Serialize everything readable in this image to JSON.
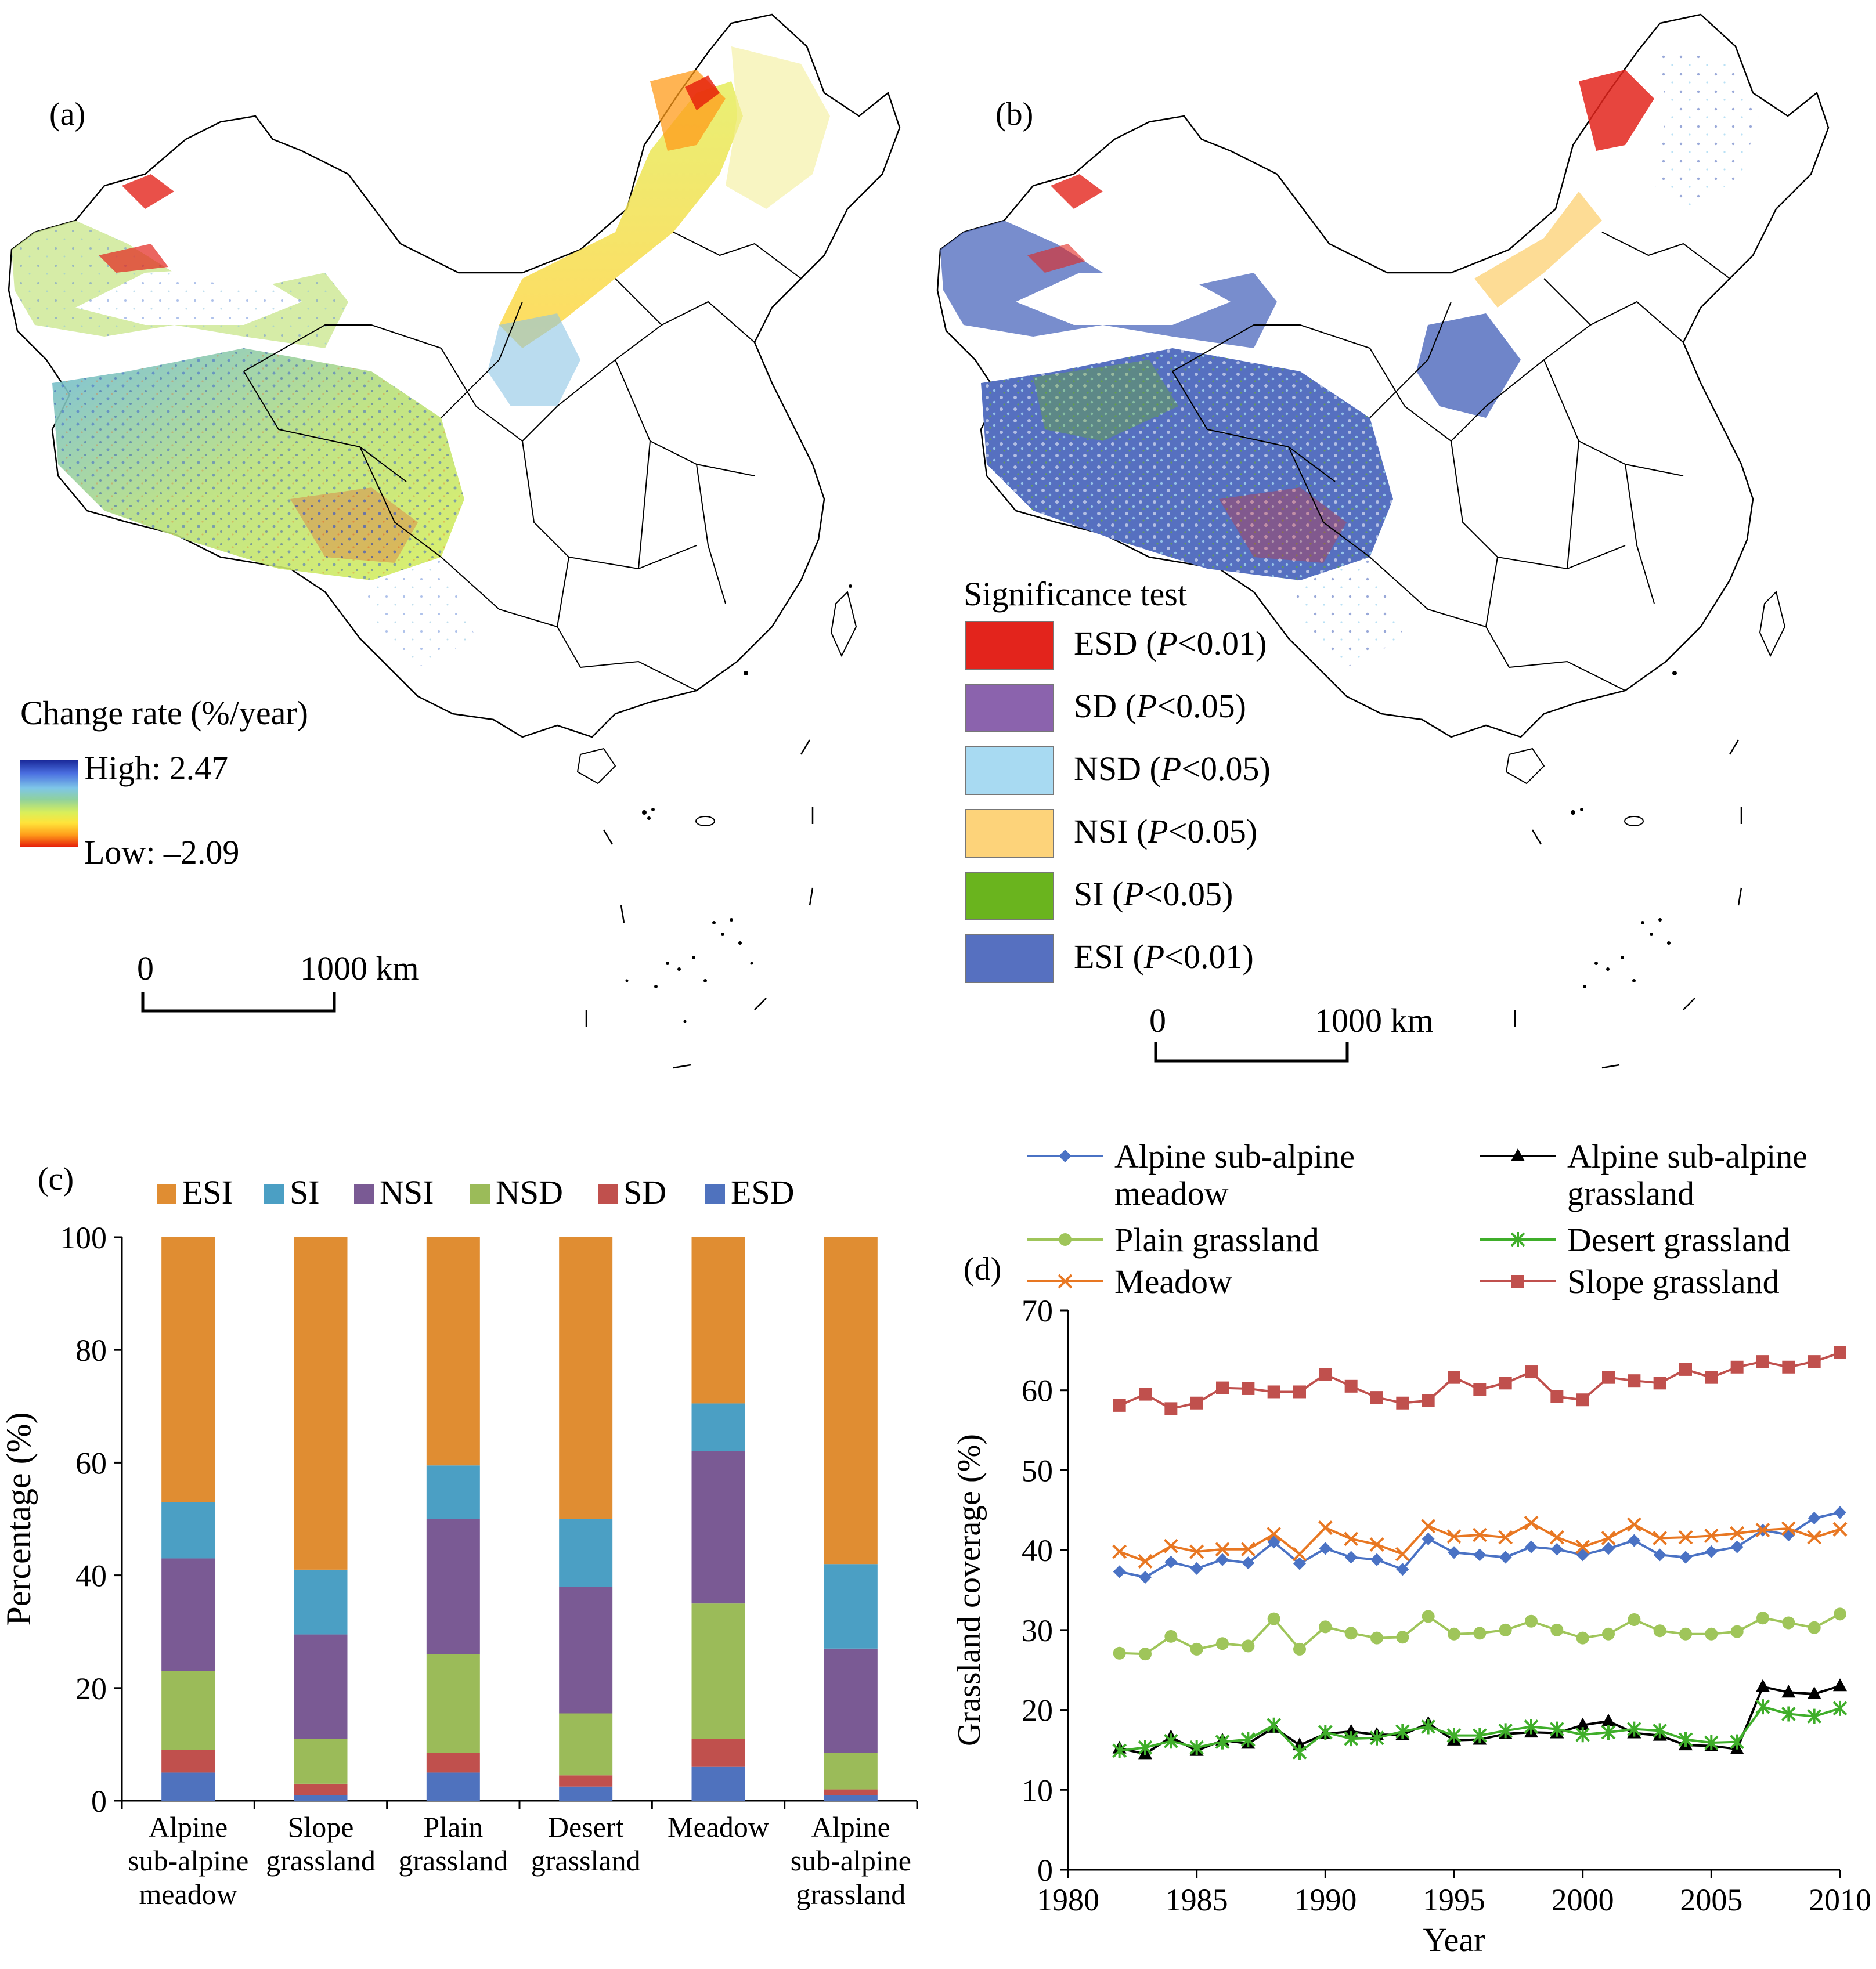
{
  "panels": {
    "a": "(a)",
    "b": "(b)",
    "c": "(c)",
    "d": "(d)"
  },
  "map_a": {
    "legend_title": "Change rate (%/year)",
    "high_label": "High: 2.47",
    "low_label": "Low: –2.09",
    "scale_zero": "0",
    "scale_label": "1000 km",
    "gradient_colors": [
      "#1a2a9a",
      "#4a6ee0",
      "#7ec6e8",
      "#8fd19e",
      "#d9ef5b",
      "#ffe43a",
      "#ff9b1a",
      "#e51a0a"
    ]
  },
  "map_b": {
    "legend_title": "Significance test",
    "classes": [
      {
        "code": "ESD",
        "p": "P",
        "rest": "<0.01)",
        "color": "#e3241c"
      },
      {
        "code": "SD",
        "p": "P",
        "rest": "<0.05)",
        "color": "#8b63ad"
      },
      {
        "code": "NSD",
        "p": "P",
        "rest": "<0.05)",
        "color": "#a8daf2"
      },
      {
        "code": "NSI",
        "p": "P",
        "rest": "<0.05)",
        "color": "#fdd37a"
      },
      {
        "code": "SI",
        "p": "P",
        "rest": "<0.05)",
        "color": "#6ab41e"
      },
      {
        "code": "ESI",
        "p": "P",
        "rest": "<0.01)",
        "color": "#5670c0"
      }
    ],
    "scale_zero": "0",
    "scale_label": "1000 km"
  },
  "chart_data": [
    {
      "type": "bar",
      "stacked": true,
      "panel": "(c)",
      "categories": [
        [
          "Alpine",
          "sub-alpine",
          "meadow"
        ],
        [
          "Slope",
          "grassland"
        ],
        [
          "Plain",
          "grassland"
        ],
        [
          "Desert",
          "grassland"
        ],
        [
          "Meadow"
        ],
        [
          "Alpine",
          "sub-alpine",
          "grassland"
        ]
      ],
      "ylabel": "Percentage  (%)",
      "ylim": [
        0,
        100
      ],
      "yticks": [
        0,
        20,
        40,
        60,
        80,
        100
      ],
      "legend_placement": "top",
      "series": [
        {
          "name": "ESD",
          "color": "#4f72be",
          "values": [
            5,
            1,
            5,
            2.5,
            6,
            1
          ]
        },
        {
          "name": "SD",
          "color": "#c0504d",
          "values": [
            4,
            2,
            3.5,
            2,
            5,
            1
          ]
        },
        {
          "name": "NSD",
          "color": "#9bbb59",
          "values": [
            14,
            8,
            17.5,
            11,
            24,
            6.5
          ]
        },
        {
          "name": "NSI",
          "color": "#7a5a94",
          "values": [
            20,
            18.5,
            24,
            22.5,
            27,
            18.5
          ]
        },
        {
          "name": "SI",
          "color": "#4b9fc4",
          "values": [
            10,
            11.5,
            9.5,
            12,
            8.5,
            15
          ]
        },
        {
          "name": "ESI",
          "color": "#e08d32",
          "values": [
            47,
            59,
            40.5,
            50,
            29.5,
            58
          ]
        }
      ],
      "legend_order": [
        "ESI",
        "SI",
        "NSI",
        "NSD",
        "SD",
        "ESD"
      ]
    },
    {
      "type": "line",
      "panel": "(d)",
      "xlabel": "Year",
      "ylabel": "Grassland coverage (%)",
      "xlim": [
        1980,
        2010
      ],
      "ylim": [
        0,
        70
      ],
      "xticks": [
        1980,
        1985,
        1990,
        1995,
        2000,
        2005,
        2010
      ],
      "yticks": [
        0,
        10,
        20,
        30,
        40,
        50,
        60,
        70
      ],
      "x": [
        1982,
        1983,
        1984,
        1985,
        1986,
        1987,
        1988,
        1989,
        1990,
        1991,
        1992,
        1993,
        1994,
        1995,
        1996,
        1997,
        1998,
        1999,
        2000,
        2001,
        2002,
        2003,
        2004,
        2005,
        2006,
        2007,
        2008,
        2009,
        2010
      ],
      "legend_placement": "top",
      "series": [
        {
          "name": "Alpine sub-alpine meadow",
          "label_lines": [
            "Alpine sub-alpine",
            "meadow"
          ],
          "color": "#4a72c4",
          "marker": "diamond",
          "values": [
            37.3,
            36.6,
            38.5,
            37.7,
            38.8,
            38.4,
            41.0,
            38.3,
            40.2,
            39.1,
            38.8,
            37.6,
            41.4,
            39.7,
            39.4,
            39.1,
            40.4,
            40.1,
            39.4,
            40.2,
            41.2,
            39.4,
            39.1,
            39.8,
            40.4,
            42.5,
            41.9,
            44.0,
            44.7
          ]
        },
        {
          "name": "Alpine sub-alpine grassland",
          "label_lines": [
            "Alpine sub-alpine",
            "grassland"
          ],
          "color": "#000000",
          "marker": "triangle",
          "values": [
            15.2,
            14.5,
            16.6,
            14.9,
            16.2,
            15.8,
            17.8,
            15.6,
            17.0,
            17.3,
            16.9,
            16.9,
            18.3,
            16.2,
            16.3,
            17.0,
            17.2,
            17.1,
            18.1,
            18.6,
            17.1,
            16.8,
            15.6,
            15.5,
            15.1,
            22.9,
            22.2,
            22.0,
            23.0
          ]
        },
        {
          "name": "Plain grassland",
          "label_lines": [
            "Plain grassland"
          ],
          "color": "#9fc55a",
          "marker": "circle",
          "values": [
            27.1,
            27.0,
            29.2,
            27.6,
            28.3,
            28.0,
            31.4,
            27.6,
            30.4,
            29.6,
            29.0,
            29.1,
            31.7,
            29.5,
            29.6,
            30.0,
            31.1,
            30.0,
            29.0,
            29.5,
            31.3,
            29.9,
            29.5,
            29.5,
            29.8,
            31.5,
            30.9,
            30.3,
            32.0
          ]
        },
        {
          "name": "Desert grassland",
          "label_lines": [
            "Desert grassland"
          ],
          "color": "#3fae2a",
          "marker": "star",
          "values": [
            14.9,
            15.3,
            16.1,
            15.3,
            16.0,
            16.3,
            18.1,
            14.7,
            17.2,
            16.4,
            16.5,
            17.3,
            17.9,
            16.8,
            16.8,
            17.4,
            17.9,
            17.6,
            16.9,
            17.2,
            17.6,
            17.4,
            16.3,
            15.9,
            16.0,
            20.4,
            19.5,
            19.2,
            20.2
          ]
        },
        {
          "name": "Meadow",
          "label_lines": [
            "Meadow"
          ],
          "color": "#e87722",
          "marker": "x",
          "values": [
            39.8,
            38.6,
            40.5,
            39.8,
            40.1,
            40.1,
            42.0,
            39.5,
            42.8,
            41.4,
            40.7,
            39.5,
            43.0,
            41.7,
            41.9,
            41.6,
            43.4,
            41.6,
            40.4,
            41.5,
            43.2,
            41.5,
            41.6,
            41.8,
            42.1,
            42.5,
            42.7,
            41.6,
            42.6
          ]
        },
        {
          "name": "Slope grassland",
          "label_lines": [
            "Slope grassland"
          ],
          "color": "#c0504d",
          "marker": "square",
          "values": [
            58.1,
            59.5,
            57.7,
            58.4,
            60.3,
            60.2,
            59.8,
            59.8,
            62.0,
            60.5,
            59.1,
            58.4,
            58.7,
            61.6,
            60.1,
            60.9,
            62.3,
            59.2,
            58.8,
            61.6,
            61.2,
            60.9,
            62.6,
            61.6,
            62.9,
            63.6,
            62.9,
            63.6,
            64.7
          ]
        }
      ]
    }
  ]
}
